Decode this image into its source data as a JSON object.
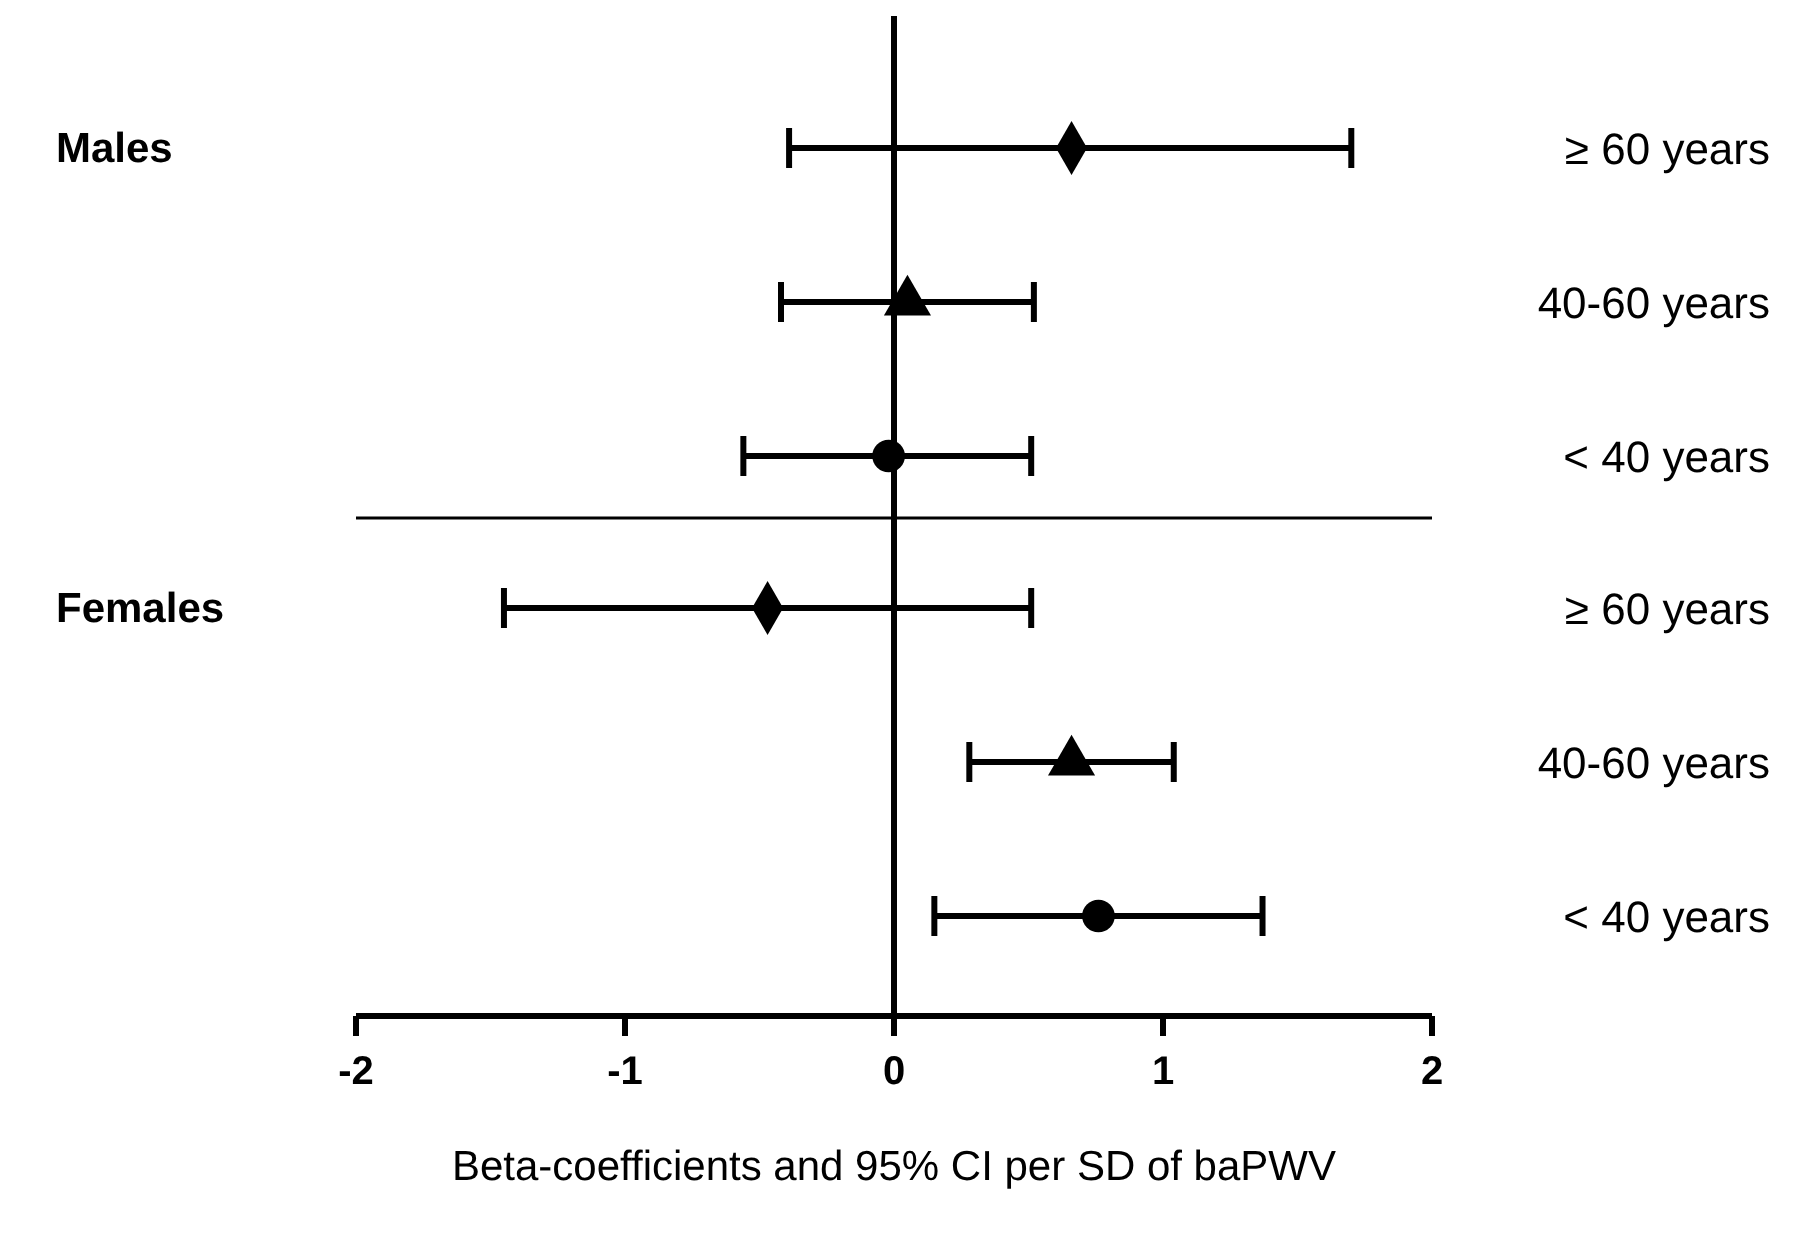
{
  "chart_data": [
    {
      "type": "scatter",
      "orientation": "horizontal",
      "title": "Males",
      "categories": [
        "≥ 60 years",
        "40-60 years",
        "< 40 years"
      ],
      "xlim": [
        -2,
        2
      ],
      "tick_labels": "y",
      "ref_lines": [
        {
          "axis": "x",
          "value": 0
        }
      ],
      "series": [
        {
          "color": "#000000",
          "marker": "diamond",
          "values": [
            0.66,
            null,
            null
          ],
          "errors": [
            [
              -0.39,
              1.7
            ],
            null,
            null
          ]
        },
        {
          "color": "#000000",
          "marker": "triangle",
          "values": [
            null,
            0.05,
            null
          ],
          "errors": [
            null,
            [
              -0.42,
              0.52
            ],
            null
          ]
        },
        {
          "color": "#000000",
          "marker": "circle",
          "values": [
            null,
            null,
            -0.02
          ],
          "errors": [
            null,
            null,
            [
              -0.56,
              0.51
            ]
          ]
        }
      ]
    },
    {
      "type": "scatter",
      "orientation": "horizontal",
      "title": "Females",
      "categories": [
        "≥ 60 years",
        "40-60 years",
        "< 40 years"
      ],
      "xlabel": "Beta-coefficients and 95% CI per SD of baPWV",
      "xlim": [
        -2,
        2
      ],
      "xticks": [
        -2,
        -1,
        0,
        1,
        2
      ],
      "ref_lines": [
        {
          "axis": "x",
          "value": 0
        }
      ],
      "series": [
        {
          "color": "#000000",
          "marker": "diamond",
          "values": [
            -0.47,
            null,
            null
          ],
          "errors": [
            [
              -1.45,
              0.51
            ],
            null,
            null
          ]
        },
        {
          "color": "#000000",
          "marker": "triangle",
          "values": [
            null,
            0.66,
            null
          ],
          "errors": [
            null,
            [
              0.28,
              1.04
            ],
            null
          ]
        },
        {
          "color": "#000000",
          "marker": "circle",
          "values": [
            null,
            null,
            0.76
          ],
          "errors": [
            null,
            null,
            [
              0.15,
              1.37
            ]
          ]
        }
      ]
    }
  ]
}
